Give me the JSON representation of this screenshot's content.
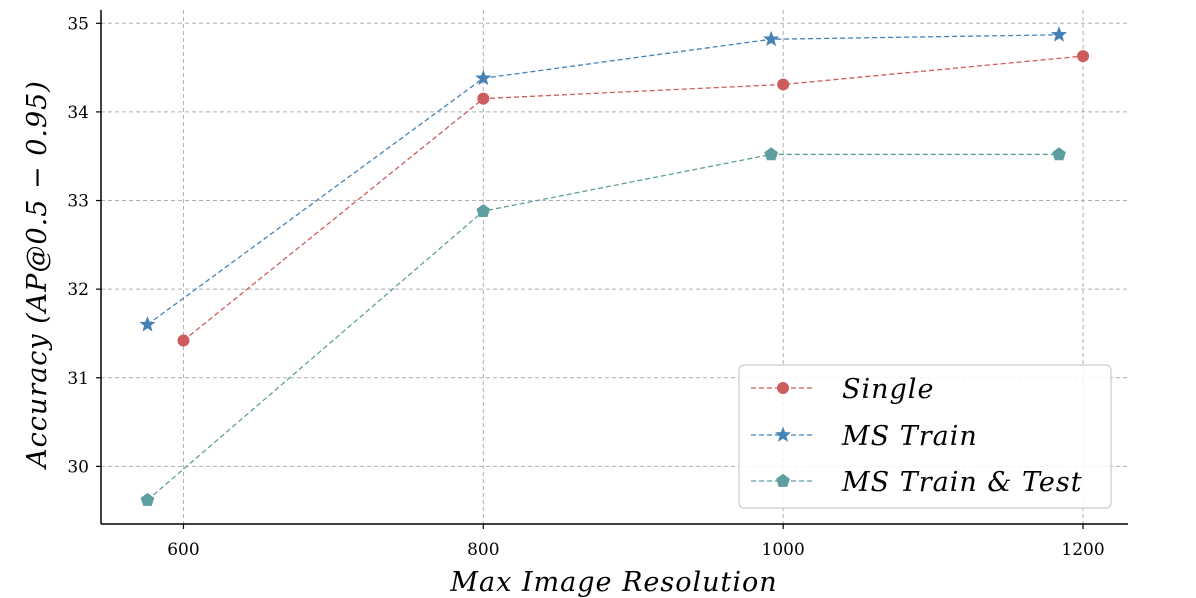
{
  "chart_data": {
    "type": "line",
    "title": "",
    "xlabel": "Max Image Resolution",
    "ylabel": "Accuracy (AP@0.5 − 0.95)",
    "xlim": [
      545,
      1230
    ],
    "ylim": [
      29.35,
      35.15
    ],
    "xticks": [
      600,
      800,
      1000,
      1200
    ],
    "yticks": [
      30,
      31,
      32,
      33,
      34,
      35
    ],
    "grid": true,
    "legend_position": "bottom-right",
    "series": [
      {
        "name": "Single",
        "color": "#cd5c5c",
        "marker": "circle",
        "x": [
          600,
          800,
          1000,
          1200
        ],
        "y": [
          31.42,
          34.15,
          34.31,
          34.63
        ]
      },
      {
        "name": "MS Train",
        "color": "#4682b4",
        "marker": "star",
        "x": [
          576,
          800,
          992,
          1184
        ],
        "y": [
          31.6,
          34.38,
          34.82,
          34.87
        ]
      },
      {
        "name": "MS Train & Test",
        "color": "#5f9ea0",
        "marker": "pentagon",
        "x": [
          576,
          800,
          992,
          1184
        ],
        "y": [
          29.62,
          32.88,
          33.52,
          33.52
        ]
      }
    ]
  }
}
